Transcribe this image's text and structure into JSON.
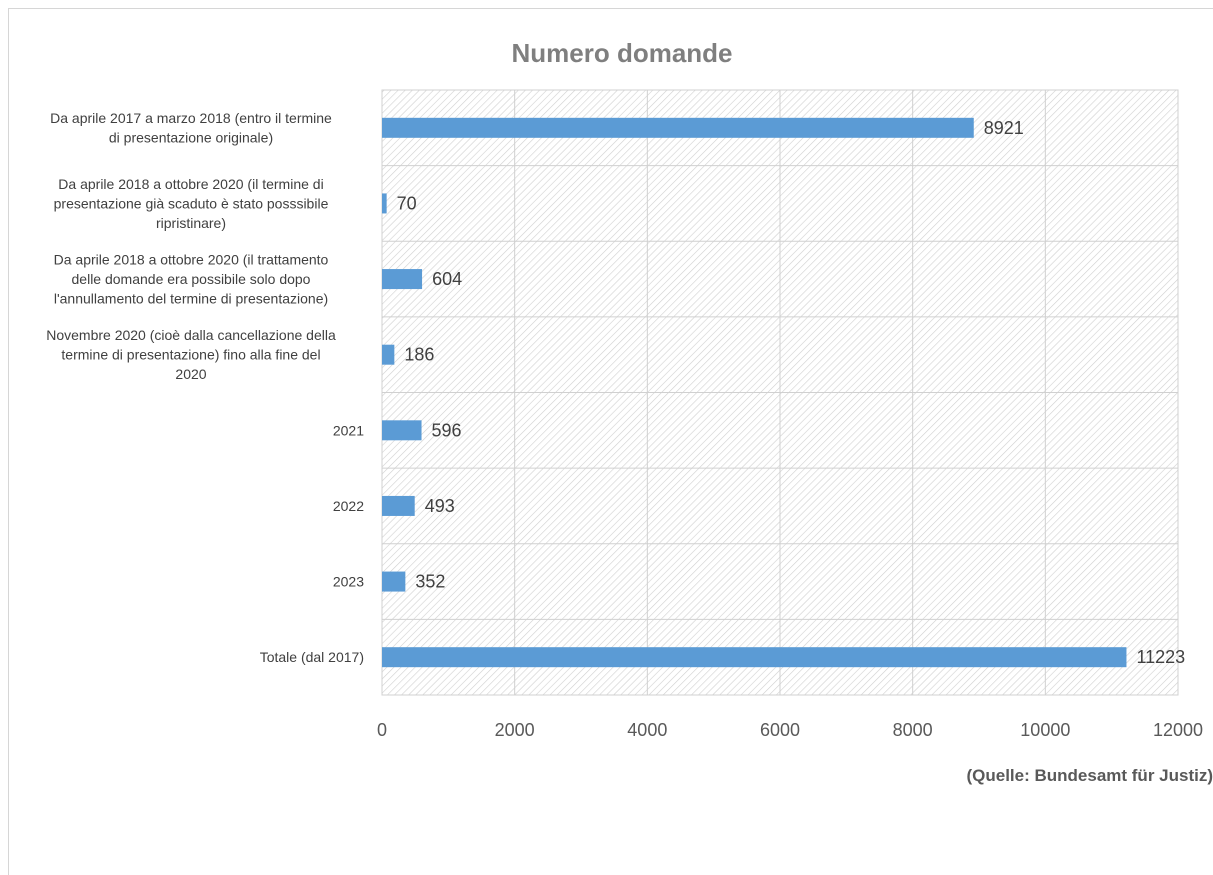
{
  "chart_data": {
    "type": "bar",
    "orientation": "horizontal",
    "title": "Numero domande",
    "source_note": "(Quelle: Bundesamt für Justiz)",
    "categories": [
      [
        "Da aprile 2017 a marzo 2018 (entro il termine",
        "di presentazione originale)"
      ],
      [
        "Da aprile 2018 a ottobre 2020 (il termine di",
        "presentazione già scaduto è stato posssibile",
        "ripristinare)"
      ],
      [
        "Da aprile 2018 a ottobre 2020 (il trattamento",
        "delle domande era possibile solo dopo",
        "l'annullamento del termine di presentazione)"
      ],
      [
        "Novembre 2020 (cioè dalla cancellazione della",
        "termine di  presentazione) fino alla fine del",
        "2020"
      ],
      [
        "2021"
      ],
      [
        "2022"
      ],
      [
        "2023"
      ],
      [
        "Totale (dal 2017)"
      ]
    ],
    "values": [
      8921,
      70,
      604,
      186,
      596,
      493,
      352,
      11223
    ],
    "data_labels": [
      "8921",
      "70",
      "604",
      "186",
      "596",
      "493",
      "352",
      "11223"
    ],
    "xlim": [
      0,
      12000
    ],
    "xticks": [
      0,
      2000,
      4000,
      6000,
      8000,
      10000,
      12000
    ],
    "xtick_labels": [
      "0",
      "2000",
      "4000",
      "6000",
      "8000",
      "10000",
      "12000"
    ],
    "grid": true,
    "plot_background": "hatched",
    "bar_color": "#5b9bd5"
  }
}
